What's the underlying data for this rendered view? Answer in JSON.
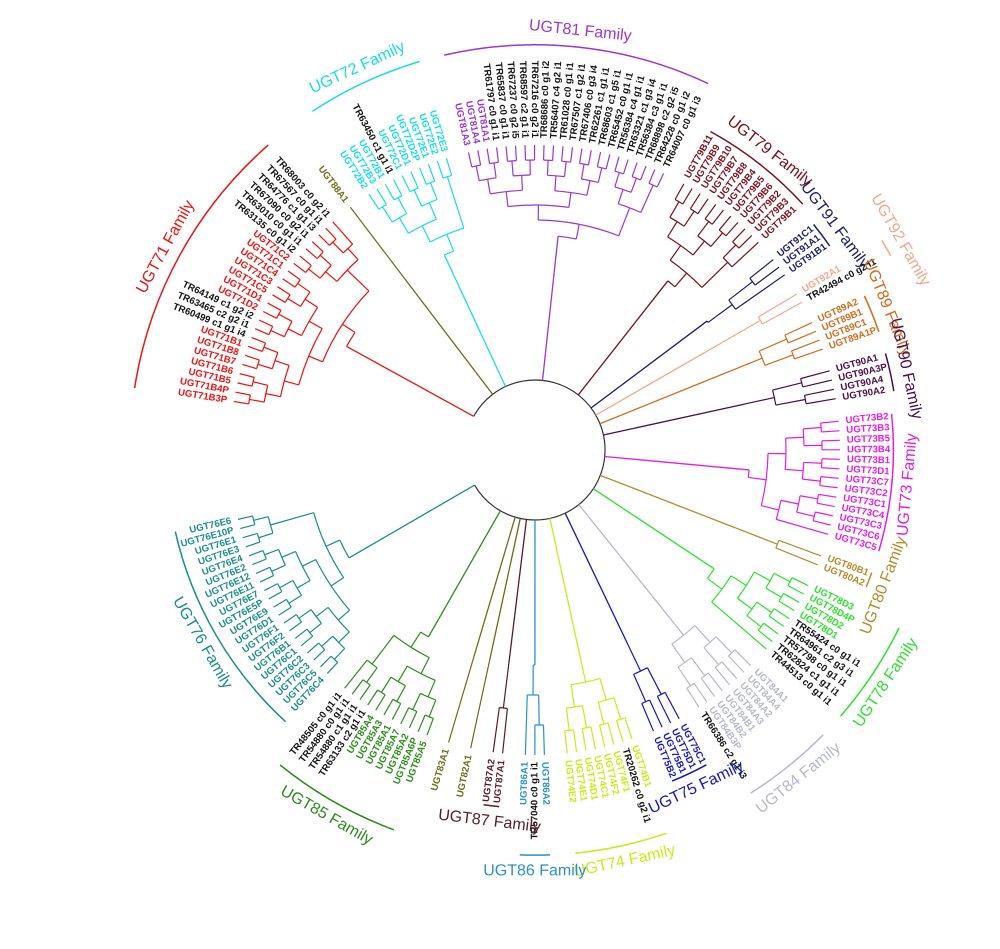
{
  "families": [
    {
      "id": "UGT71",
      "label": "UGT71 Family",
      "color": "#ee1111",
      "leaves": [
        "UGT71B3P",
        "UGT71B4P",
        "UGT71B5",
        "UGT71B6",
        "UGT71B7",
        "UGT71B8",
        "UGT71B1",
        "TR60499 c1 g1 i4",
        "TR63465 c2 g2 i1",
        "TR64149 c1 g2 i2",
        "UGT71D2",
        "UGT71D1",
        "UGT71C5",
        "UGT71C3",
        "UGT71C4",
        "UGT71C1",
        "UGT71C2",
        "TR63135 c0 g1 i2",
        "TR63010 c0 g1 i1",
        "TR67090 c0 g2 i1",
        "TR64776 c1 g1 i3",
        "TR67567 c0 g1 i1",
        "TR68003 c0 g2 i1"
      ]
    },
    {
      "id": "UGT88",
      "label": "",
      "color": "#6b6b18",
      "leaves": [
        "UGT88A1"
      ]
    },
    {
      "id": "UGT72",
      "label": "UGT72 Family",
      "color": "#18dce6",
      "leaves": [
        "UGT72B2",
        "UGT72B3",
        "UGT72B1",
        "TR63450 c1 g1 i1",
        "UGT72C1",
        "UGT72D1",
        "UGT72D2P",
        "UGT72E1",
        "UGT72E2",
        "UGT72E3"
      ]
    },
    {
      "id": "UGT81",
      "label": "UGT81 Family",
      "color": "#9a36d6",
      "leaves": [
        "UGT81A3",
        "UGT81A4",
        "UGT81A1",
        "TR61797 c0 g1 i1",
        "TR65837 c0 g1 i1",
        "TR67237 c0 g2 i5",
        "TR68597 c2 g1 i1",
        "TR67216 c0 g2 i1",
        "TR68686 c0 g1 i2",
        "TR56407 c4 g2 i1",
        "TR61028 c0 g1 i1",
        "TR67507 c1 g2 i1",
        "TR67406 c0 g3 i4",
        "TR62261 c1 g1 i1",
        "TR68603 c1 g5 i1",
        "TR65452 c0 g1 i1",
        "TR56384 c4 g1 i1",
        "TR63321 c1 g3 i4",
        "TR56384 c3 g1 i1",
        "TR68898 c2 g2 i5",
        "TR64228 c0 g1 i2",
        "TR64007 c0 g1 i3"
      ]
    },
    {
      "id": "UGT79",
      "label": "UGT79 Family",
      "color": "#7a0e1a",
      "leaves": [
        "UGT79B11",
        "UGT79B9",
        "UGT79B10",
        "UGT79B7",
        "UGT79B8",
        "UGT79B4",
        "UGT79B5",
        "UGT79B6",
        "UGT79B2",
        "UGT79B3",
        "UGT79B1"
      ]
    },
    {
      "id": "UGT91",
      "label": "UGT91 Family",
      "color": "#1a1a6e",
      "leaves": [
        "UGT91C1",
        "UGT91A1",
        "UGT91B1"
      ]
    },
    {
      "id": "UGT92",
      "label": "UGT92 Family",
      "color": "#f2a88c",
      "leaves": [
        "UGT92A1",
        "TR42494 c0 g2 i1"
      ]
    },
    {
      "id": "UGT89",
      "label": "UGT89 Family",
      "color": "#d46a1c",
      "leaves": [
        "UGT89A2",
        "UGT89B1",
        "UGT89C1",
        "UGT89A1P"
      ]
    },
    {
      "id": "UGT90",
      "label": "UGT90 Family",
      "color": "#4a0d4a",
      "leaves": [
        "UGT90A1",
        "UGT90A3P",
        "UGT90A4",
        "UGT90A2"
      ]
    },
    {
      "id": "UGT73",
      "label": "UGT73 Family",
      "color": "#e51de1",
      "leaves": [
        "UGT73B2",
        "UGT73B3",
        "UGT73B5",
        "UGT73B4",
        "UGT73B1",
        "UGT73D1",
        "UGT73C7",
        "UGT73C2",
        "UGT73C1",
        "UGT73C4",
        "UGT73C3",
        "UGT73C6",
        "UGT73C5"
      ]
    },
    {
      "id": "UGT80",
      "label": "UGT80 Family",
      "color": "#b58a2c",
      "leaves": [
        "UGT80B1",
        "UGT80A2"
      ]
    },
    {
      "id": "UGT78",
      "label": "UGT78 Family",
      "color": "#2ce22c",
      "leaves": [
        "UGT78D3",
        "UGT78D4P",
        "UGT78D2",
        "UGT78D1",
        "TR55424 c0 g1 i1",
        "TR64961 c2 g3 i1",
        "TR57798 c0 g1 i1",
        "TR62824 c1 g1 i1",
        "TR44513 c0 g1 i1"
      ]
    },
    {
      "id": "UGT84",
      "label": "UGT84 Family",
      "color": "#b8b8cc",
      "leaves": [
        "UGT84A1",
        "UGT84A4",
        "UGT84A2",
        "UGT84A3",
        "UGT84B1",
        "UGT84B2",
        "UGT84B3P",
        "TR66386 c2 g1 i3"
      ]
    },
    {
      "id": "UGT75",
      "label": "UGT75 Family",
      "color": "#1414cc",
      "leaves": [
        "UGT75C1",
        "UGT75D1",
        "UGT75B1",
        "UGT75B2"
      ]
    },
    {
      "id": "UGT74",
      "label": "UGT74 Family",
      "color": "#c9ea1a",
      "leaves": [
        "UGT74B1",
        "TR20262 c0 g2 i1",
        "UGT74F1",
        "UGT74F2",
        "UGT74C1",
        "UGT74D1",
        "UGT74E1",
        "UGT74E2"
      ]
    },
    {
      "id": "UGT86",
      "label": "UGT86 Family",
      "color": "#2a90cc",
      "leaves": [
        "UGT86A2",
        "TR57040 c0 g1 i1",
        "UGT86A1"
      ]
    },
    {
      "id": "UGT87",
      "label": "UGT87 Family",
      "color": "#5a1a2a",
      "leaves": [
        "UGT87A1",
        "UGT87A2"
      ]
    },
    {
      "id": "UGT82",
      "label": "",
      "color": "#6b6b18",
      "leaves": [
        "UGT82A1"
      ]
    },
    {
      "id": "UGT83",
      "label": "",
      "color": "#6b6b18",
      "leaves": [
        "UGT83A1"
      ]
    },
    {
      "id": "UGT85",
      "label": "UGT85 Family",
      "color": "#2a8c1a",
      "leaves": [
        "UGT85A5",
        "UGT85A6P",
        "UGT85A2",
        "UGT85A7",
        "UGT85A1",
        "UGT85A3",
        "UGT85A4",
        "TR63133 c2 g1 i1",
        "TR54880 c1 g1 i1",
        "TR54880 c0 g1 i1",
        "TR48505 c0 g1 i1"
      ]
    },
    {
      "id": "UGT76",
      "label": "UGT76 Family",
      "color": "#1a8c8c",
      "leaves": [
        "UGT76C4",
        "UGT76C5",
        "UGT76C3",
        "UGT76C2",
        "UGT76C1",
        "UGT76B1",
        "UGT76F2",
        "UGT76F1",
        "UGT76D1",
        "UGT76E9",
        "UGT76E5P",
        "UGT76E7",
        "UGT76E11",
        "UGT76E12",
        "UGT76E2",
        "UGT76E4",
        "UGT76E3",
        "UGT76E1",
        "UGT76E10P",
        "UGT76E6"
      ]
    }
  ],
  "leaf_black": "#111111"
}
